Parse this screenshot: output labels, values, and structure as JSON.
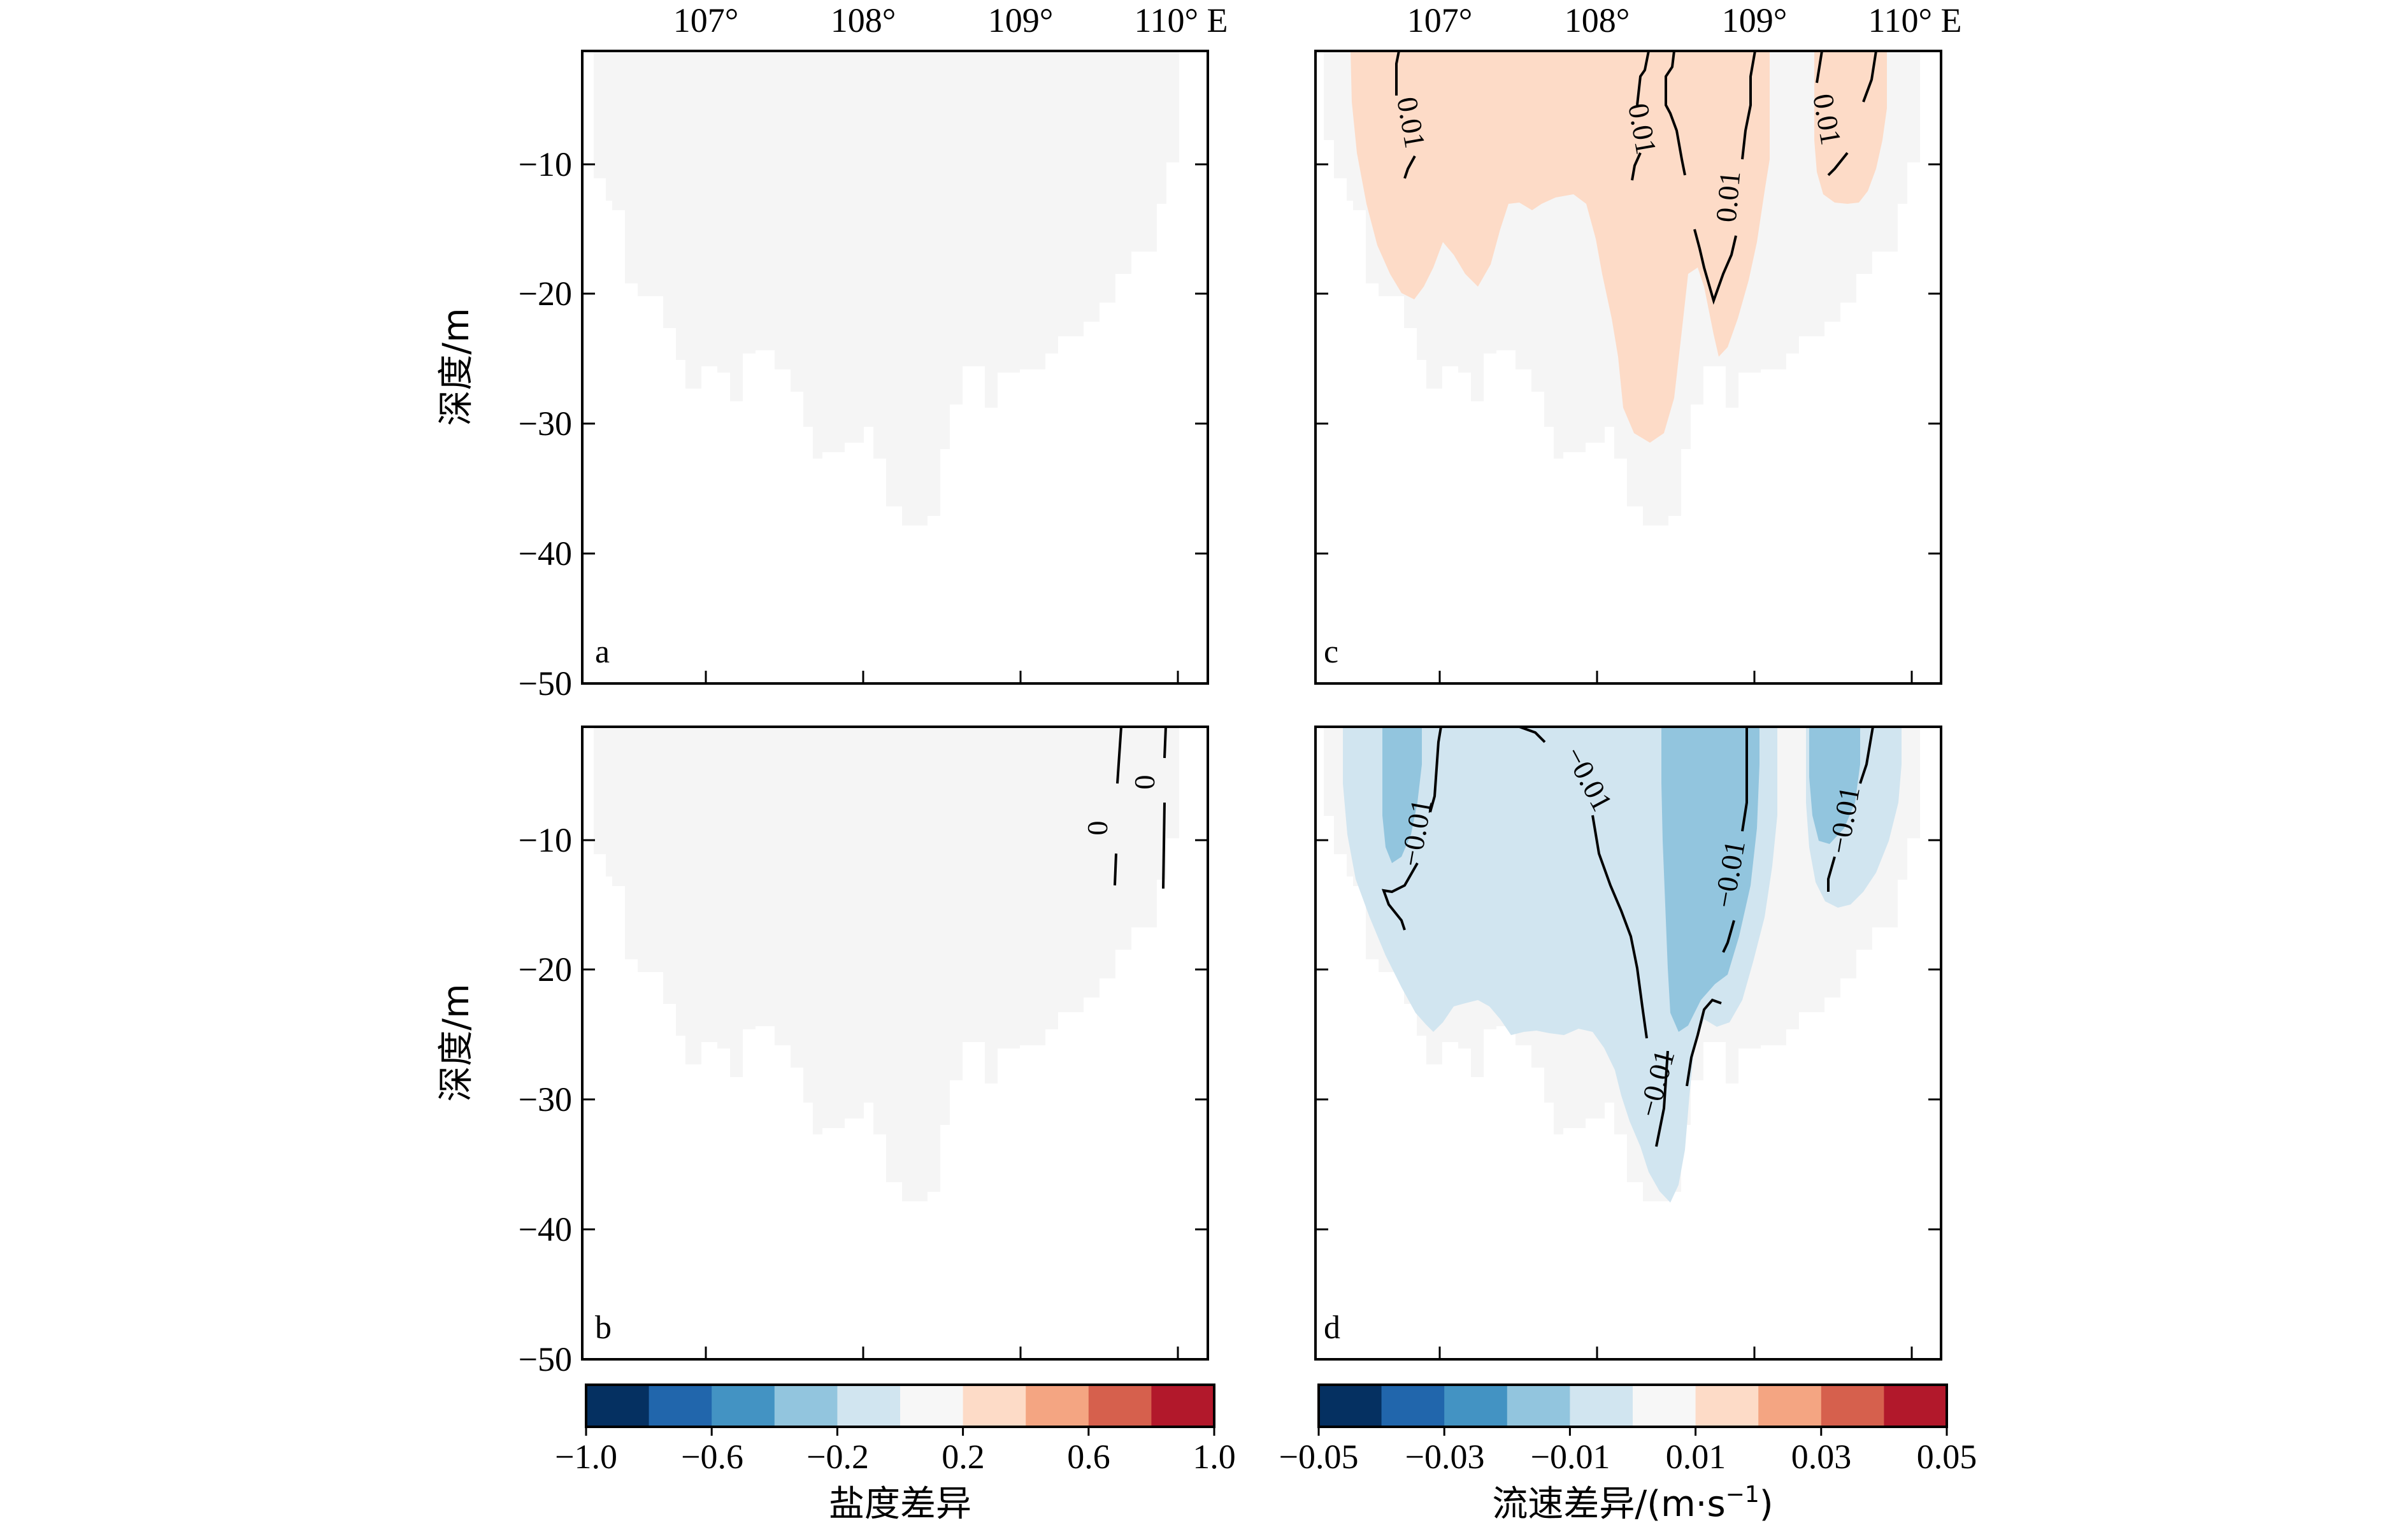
{
  "figure": {
    "ylabel": "深度/m",
    "x_ticks": [
      "107°",
      "108°",
      "109°",
      "110° E"
    ],
    "y_ticks": [
      "−10",
      "−20",
      "−30",
      "−40",
      "−50"
    ]
  },
  "colors": {
    "background": "#ffffff",
    "land_nan": "#f5f5f5",
    "salinity_positive": "#fddbc7",
    "velocity_positive": "#fddbc7",
    "velocity_negative_weak": "#d1e5f0",
    "velocity_negative_strong": "#92c5de",
    "contour_line": "#000000"
  },
  "colorbars": [
    {
      "label": "盐度差异",
      "tick_labels": [
        "−1.0",
        "−0.6",
        "−0.2",
        "0.2",
        "0.6",
        "1.0"
      ],
      "bins": [
        "#053061",
        "#2166ac",
        "#4393c3",
        "#92c5de",
        "#d1e5f0",
        "#f7f7f7",
        "#fddbc7",
        "#f4a582",
        "#d6604d",
        "#b2182b"
      ]
    },
    {
      "label_main": "流速差异/(m·s",
      "label_sup": "−1",
      "label_end": ")",
      "tick_labels": [
        "−0.05",
        "−0.03",
        "−0.01",
        "0.01",
        "0.03",
        "0.05"
      ],
      "bins": [
        "#053061",
        "#2166ac",
        "#4393c3",
        "#92c5de",
        "#d1e5f0",
        "#f7f7f7",
        "#fddbc7",
        "#f4a582",
        "#d6604d",
        "#b2182b"
      ]
    }
  ],
  "chart_data": [
    {
      "panel": "a",
      "type": "heatmap",
      "variable": "salinity difference",
      "xlim": [
        106.25,
        110.2
      ],
      "ylim": [
        -50,
        -1
      ],
      "x_ticks": [
        107,
        108,
        109,
        110
      ],
      "y_ticks": [
        -10,
        -20,
        -30,
        -40,
        -50
      ],
      "filled_levels": [
        {
          "range": [
            -0.2,
            0.2
          ],
          "color": "#f5f5f5"
        }
      ],
      "contour_labels": []
    },
    {
      "panel": "b",
      "type": "heatmap",
      "variable": "salinity difference",
      "xlim": [
        106.25,
        110.2
      ],
      "ylim": [
        -50,
        -1
      ],
      "x_ticks": [
        107,
        108,
        109,
        110
      ],
      "y_ticks": [
        -10,
        -20,
        -30,
        -40,
        -50
      ],
      "filled_levels": [
        {
          "range": [
            -0.2,
            0.2
          ],
          "color": "#f5f5f5"
        }
      ],
      "contour_labels": [
        "0",
        "0"
      ]
    },
    {
      "panel": "c",
      "type": "heatmap",
      "variable": "velocity difference",
      "xlim": [
        106.25,
        110.2
      ],
      "ylim": [
        -50,
        -1
      ],
      "x_ticks": [
        107,
        108,
        109,
        110
      ],
      "y_ticks": [
        -10,
        -20,
        -30,
        -40,
        -50
      ],
      "filled_levels": [
        {
          "range": [
            -0.01,
            0.01
          ],
          "color": "#f5f5f5"
        },
        {
          "range": [
            0.01,
            0.02
          ],
          "color": "#fddbc7"
        }
      ],
      "contour_labels": [
        "0.01",
        "0.01",
        "0.01",
        "0.01"
      ]
    },
    {
      "panel": "d",
      "type": "heatmap",
      "variable": "velocity difference",
      "xlim": [
        106.25,
        110.2
      ],
      "ylim": [
        -50,
        -1
      ],
      "x_ticks": [
        107,
        108,
        109,
        110
      ],
      "y_ticks": [
        -10,
        -20,
        -30,
        -40,
        -50
      ],
      "filled_levels": [
        {
          "range": [
            -0.01,
            0.01
          ],
          "color": "#f5f5f5"
        },
        {
          "range": [
            -0.02,
            -0.01
          ],
          "color": "#d1e5f0"
        },
        {
          "range": [
            -0.03,
            -0.02
          ],
          "color": "#92c5de"
        }
      ],
      "contour_labels": [
        "−0.01",
        "−0.01",
        "−0.01",
        "−0.01",
        "−0.01"
      ]
    }
  ],
  "panel_letters": [
    "a",
    "b",
    "c",
    "d"
  ]
}
